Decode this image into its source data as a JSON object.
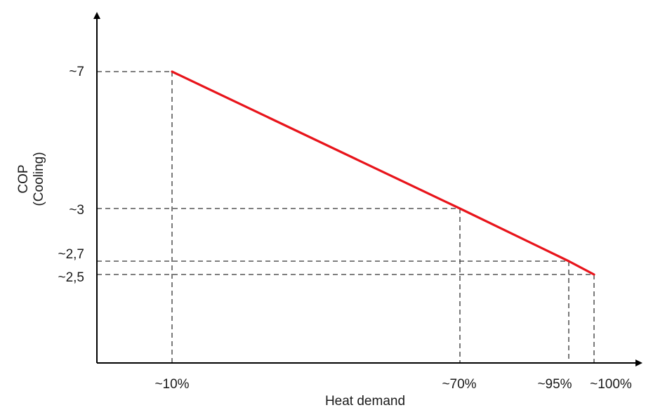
{
  "chart_data": {
    "type": "line",
    "xlabel": "Heat demand",
    "ylabel_line1": "COP",
    "ylabel_line2": "(Cooling)",
    "x_ticks": [
      {
        "label": "~10%",
        "value": 10
      },
      {
        "label": "~70%",
        "value": 70
      },
      {
        "label": "~95%",
        "value": 95
      },
      {
        "label": "~100%",
        "value": 100
      }
    ],
    "y_ticks": [
      {
        "label": "~7",
        "value": 7
      },
      {
        "label": "~3",
        "value": 3
      },
      {
        "label": "~2,7",
        "value": 2.7
      },
      {
        "label": "~2,5",
        "value": 2.5
      }
    ],
    "series": [
      {
        "color": "#e8141b",
        "points": [
          {
            "x": 10,
            "y": 7
          },
          {
            "x": 70,
            "y": 3
          },
          {
            "x": 95,
            "y": 2.7
          },
          {
            "x": 100,
            "y": 2.5
          }
        ]
      }
    ],
    "guide_lines": "dashed",
    "axis_color": "#000000",
    "guide_color": "#333333"
  }
}
